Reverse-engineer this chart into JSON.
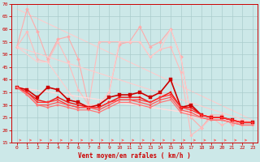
{
  "xlabel": "Vent moyen/en rafales ( km/h )",
  "xlim": [
    -0.5,
    23.5
  ],
  "ylim": [
    15,
    70
  ],
  "yticks": [
    15,
    20,
    25,
    30,
    35,
    40,
    45,
    50,
    55,
    60,
    65,
    70
  ],
  "xticks": [
    0,
    1,
    2,
    3,
    4,
    5,
    6,
    7,
    8,
    9,
    10,
    11,
    12,
    13,
    14,
    15,
    16,
    17,
    18,
    19,
    20,
    21,
    22,
    23
  ],
  "bg_color": "#cce8e8",
  "grid_color": "#aacccc",
  "series": [
    {
      "x": [
        0,
        1,
        2,
        3,
        4,
        5,
        6,
        7,
        8,
        9,
        10,
        11,
        12,
        13,
        14,
        15,
        16,
        17,
        18,
        19,
        20,
        21,
        22,
        23
      ],
      "y": [
        53,
        68,
        59,
        48,
        56,
        57,
        48,
        30,
        30,
        35,
        54,
        55,
        61,
        53,
        55,
        60,
        49,
        25,
        21,
        26,
        26,
        22,
        24,
        23
      ],
      "color": "#ffaaaa",
      "lw": 0.8,
      "marker": "D",
      "ms": 2.0
    },
    {
      "x": [
        0,
        1,
        2,
        3,
        4,
        5,
        6,
        7,
        8,
        9,
        10,
        11,
        12,
        13,
        14,
        15,
        16,
        17,
        18,
        19,
        20,
        21,
        22,
        23
      ],
      "y": [
        53,
        59,
        48,
        47,
        55,
        47,
        36,
        30,
        55,
        55,
        55,
        55,
        55,
        49,
        52,
        53,
        43,
        18,
        21,
        25,
        22,
        24,
        22,
        22
      ],
      "color": "#ffbbbb",
      "lw": 0.8,
      "marker": "D",
      "ms": 1.8
    },
    {
      "x": [
        0,
        2,
        3,
        6,
        8,
        9,
        10,
        11,
        12,
        13,
        14,
        15,
        16,
        17,
        23
      ],
      "y": [
        53,
        47,
        47,
        30,
        30,
        35,
        55,
        55,
        55,
        49,
        52,
        60,
        49,
        25,
        23
      ],
      "color": "#ffcccc",
      "lw": 0.8,
      "marker": null,
      "ms": 0
    },
    {
      "x": [
        0,
        23
      ],
      "y": [
        53,
        23
      ],
      "color": "#ffcccc",
      "lw": 0.8,
      "marker": null,
      "ms": 0
    },
    {
      "x": [
        0,
        23
      ],
      "y": [
        37,
        23
      ],
      "color": "#ffdddd",
      "lw": 0.8,
      "marker": null,
      "ms": 0
    },
    {
      "x": [
        0,
        1,
        2,
        3,
        4,
        5,
        6,
        7,
        8,
        9,
        10,
        11,
        12,
        13,
        14,
        15,
        16,
        17,
        18,
        19,
        20,
        21,
        22,
        23
      ],
      "y": [
        37,
        36,
        33,
        37,
        36,
        32,
        31,
        29,
        30,
        33,
        34,
        34,
        35,
        33,
        35,
        40,
        29,
        30,
        26,
        25,
        25,
        24,
        23,
        23
      ],
      "color": "#cc0000",
      "lw": 1.2,
      "marker": "s",
      "ms": 2.2
    },
    {
      "x": [
        0,
        1,
        2,
        3,
        4,
        5,
        6,
        7,
        8,
        9,
        10,
        11,
        12,
        13,
        14,
        15,
        16,
        17,
        18,
        19,
        20,
        21,
        22,
        23
      ],
      "y": [
        37,
        35,
        32,
        31,
        33,
        31,
        30,
        29,
        29,
        31,
        33,
        33,
        33,
        31,
        33,
        35,
        29,
        29,
        26,
        25,
        25,
        24,
        23,
        23
      ],
      "color": "#ee1111",
      "lw": 1.0,
      "marker": "s",
      "ms": 1.8
    },
    {
      "x": [
        0,
        1,
        2,
        3,
        4,
        5,
        6,
        7,
        8,
        9,
        10,
        11,
        12,
        13,
        14,
        15,
        16,
        17,
        18,
        19,
        20,
        21,
        22,
        23
      ],
      "y": [
        37,
        35,
        31,
        31,
        32,
        30,
        29,
        29,
        29,
        31,
        32,
        32,
        32,
        31,
        33,
        34,
        29,
        28,
        26,
        25,
        25,
        24,
        23,
        23
      ],
      "color": "#ff3333",
      "lw": 0.9,
      "marker": "s",
      "ms": 1.6
    },
    {
      "x": [
        0,
        1,
        2,
        3,
        4,
        5,
        6,
        7,
        8,
        9,
        10,
        11,
        12,
        13,
        14,
        15,
        16,
        17,
        18,
        19,
        20,
        21,
        22,
        23
      ],
      "y": [
        37,
        34,
        30,
        30,
        31,
        30,
        29,
        29,
        28,
        30,
        32,
        32,
        31,
        30,
        32,
        33,
        28,
        27,
        25,
        24,
        24,
        23,
        22,
        22
      ],
      "color": "#ff5555",
      "lw": 0.9,
      "marker": "s",
      "ms": 1.6
    },
    {
      "x": [
        0,
        1,
        2,
        3,
        4,
        5,
        6,
        7,
        8,
        9,
        10,
        11,
        12,
        13,
        14,
        15,
        16,
        17,
        18,
        19,
        20,
        21,
        22,
        23
      ],
      "y": [
        37,
        34,
        30,
        29,
        30,
        29,
        28,
        28,
        27,
        29,
        31,
        31,
        30,
        29,
        31,
        32,
        27,
        26,
        25,
        24,
        24,
        23,
        22,
        22
      ],
      "color": "#ff7777",
      "lw": 0.9,
      "marker": "s",
      "ms": 1.6
    }
  ],
  "arrow_color": "#ff6666"
}
